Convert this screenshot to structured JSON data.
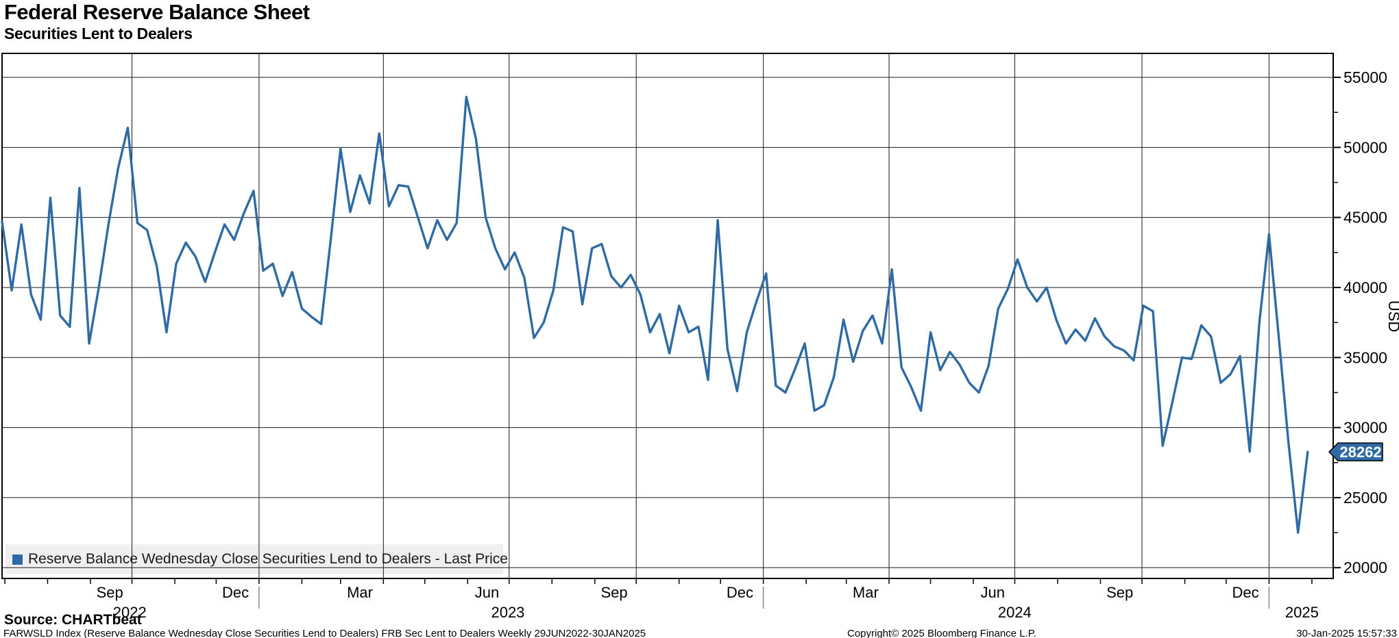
{
  "header": {
    "title": "Federal Reserve Balance Sheet",
    "subtitle": "Securities Lent to Dealers"
  },
  "legend": {
    "swatch_color": "#2e6ba4",
    "label": "Reserve Balance Wednesday Close Securities Lend to Dealers - Last Price"
  },
  "footer": {
    "source": "Source: CHARTbeat",
    "description": "FARWSLD Index (Reserve Balance Wednesday Close Securities Lend to Dealers) FRB Sec Lent to Dealers  Weekly 29JUN2022-30JAN2025",
    "copyright": "Copyright© 2025 Bloomberg Finance L.P.",
    "timestamp": "30-Jan-2025 15:57:33"
  },
  "chart_data": {
    "type": "line",
    "title": "Federal Reserve Balance Sheet - Securities Lent to Dealers",
    "series_name": "Reserve Balance Wednesday Close Securities Lend to Dealers - Last Price",
    "frequency": "Weekly",
    "date_range": "29JUN2022-30JAN2025",
    "ylabel": "USD",
    "grid": true,
    "legend_position": "bottom-left",
    "line_color": "#2e6ba4",
    "last_price": 28262,
    "last_price_badge_color": "#2e6ba4",
    "ylim": [
      19230,
      56710
    ],
    "y_major_ticks": [
      20000,
      25000,
      30000,
      35000,
      40000,
      45000,
      50000,
      55000
    ],
    "y_minor_ticks": [
      22500,
      27500,
      32500,
      37500,
      42500,
      47500,
      52500
    ],
    "weeks_total": 135,
    "x_month_labels": [
      {
        "label": "Sep",
        "week": 11.14
      },
      {
        "label": "Dec",
        "week": 24.14
      },
      {
        "label": "Mar",
        "week": 37.0
      },
      {
        "label": "Jun",
        "week": 50.14
      },
      {
        "label": "Sep",
        "week": 63.29
      },
      {
        "label": "Dec",
        "week": 76.29
      },
      {
        "label": "Mar",
        "week": 89.29
      },
      {
        "label": "Jun",
        "week": 102.43
      },
      {
        "label": "Sep",
        "week": 115.57
      },
      {
        "label": "Dec",
        "week": 128.57
      }
    ],
    "x_year_labels": [
      {
        "label": "2022",
        "week": 13.2
      },
      {
        "label": "2023",
        "week": 52.3
      },
      {
        "label": "2024",
        "week": 104.7
      },
      {
        "label": "2025",
        "week": 134.4
      }
    ],
    "x_quarter_gridlines_weeks": [
      13.43,
      26.57,
      39.43,
      52.43,
      65.57,
      78.71,
      91.71,
      104.71,
      117.86,
      131.0
    ],
    "x_month_tick_weeks": [
      0.29,
      4.71,
      9.14,
      13.43,
      17.86,
      22.14,
      26.57,
      31.0,
      35.0,
      39.43,
      43.71,
      48.14,
      52.43,
      56.86,
      61.29,
      65.57,
      70.0,
      74.29,
      78.71,
      83.14,
      87.29,
      91.71,
      96.0,
      100.43,
      104.71,
      109.14,
      113.57,
      117.86,
      122.29,
      126.57,
      131.0,
      135.43
    ],
    "x_year_separator_weeks": [
      26.57,
      78.71,
      131.0
    ],
    "values": [
      44700,
      39800,
      44500,
      39500,
      37700,
      46400,
      38000,
      37200,
      47100,
      36000,
      40000,
      44500,
      48500,
      51400,
      44600,
      44100,
      41500,
      36800,
      41700,
      43200,
      42200,
      40400,
      42500,
      44500,
      43400,
      45300,
      46900,
      41200,
      41700,
      39400,
      41100,
      38500,
      37900,
      37400,
      43500,
      49900,
      45400,
      48000,
      46000,
      51000,
      45800,
      47300,
      47200,
      45000,
      42800,
      44800,
      43400,
      44600,
      53600,
      50600,
      45000,
      42800,
      41300,
      42500,
      40700,
      36400,
      37500,
      39800,
      44300,
      44000,
      38800,
      42800,
      43100,
      40800,
      40000,
      40900,
      39500,
      36800,
      38100,
      35300,
      38700,
      36800,
      37200,
      33400,
      44800,
      35600,
      32600,
      36800,
      39000,
      41000,
      33000,
      32500,
      34200,
      36000,
      31200,
      31600,
      33600,
      37700,
      34700,
      36900,
      38000,
      36000,
      41300,
      34300,
      32900,
      31200,
      36800,
      34100,
      35400,
      34500,
      33200,
      32500,
      34400,
      38500,
      39900,
      42000,
      40000,
      39000,
      40000,
      37700,
      36000,
      37000,
      36200,
      37800,
      36500,
      35800,
      35500,
      34800,
      38700,
      38300,
      28700,
      31800,
      35000,
      34900,
      37300,
      36500,
      33200,
      33800,
      35100,
      28300,
      37500,
      43800,
      36500,
      29000,
      22500,
      28262
    ]
  }
}
